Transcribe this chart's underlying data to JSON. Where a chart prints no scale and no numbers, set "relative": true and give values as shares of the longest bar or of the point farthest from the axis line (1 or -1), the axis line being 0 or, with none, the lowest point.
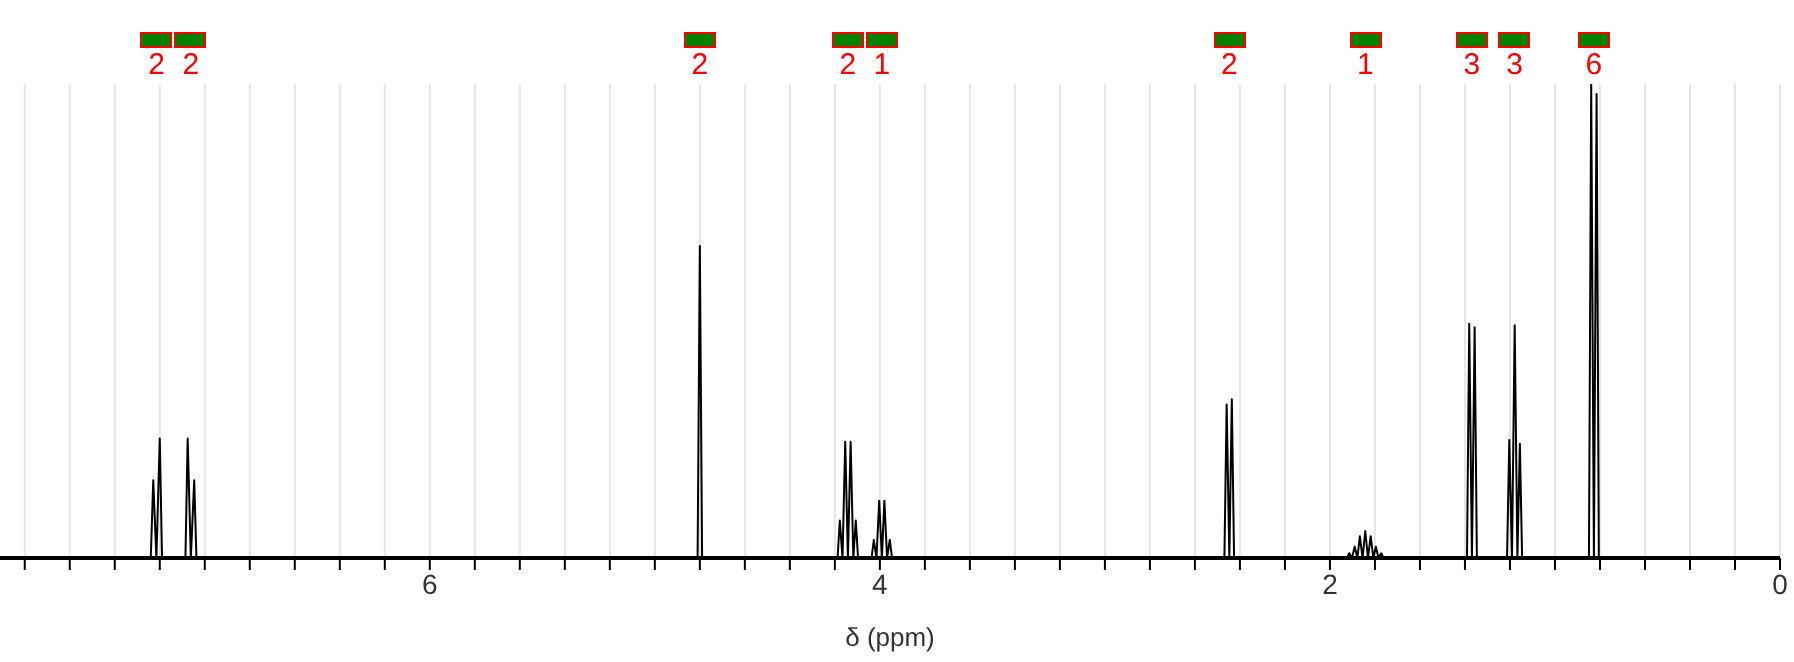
{
  "chart_data": {
    "type": "line",
    "xlabel": "δ (ppm)",
    "relative": true,
    "grid": "x",
    "marker": "none",
    "line_style": "solid",
    "xlim": [
      7.91,
      0
    ],
    "xticks": [
      {
        "value": 7.8,
        "label": null
      },
      {
        "value": 7.6,
        "label": null
      },
      {
        "value": 7.4,
        "label": null
      },
      {
        "value": 7.2,
        "label": null
      },
      {
        "value": 7,
        "label": null
      },
      {
        "value": 6.8,
        "label": null
      },
      {
        "value": 6.6,
        "label": null
      },
      {
        "value": 6.4,
        "label": null
      },
      {
        "value": 6.2,
        "label": null
      },
      6,
      {
        "value": 5.8,
        "label": null
      },
      {
        "value": 5.6,
        "label": null
      },
      {
        "value": 5.4,
        "label": null
      },
      {
        "value": 5.2,
        "label": null
      },
      {
        "value": 5,
        "label": null
      },
      {
        "value": 4.8,
        "label": null
      },
      {
        "value": 4.6,
        "label": null
      },
      {
        "value": 4.4,
        "label": null
      },
      {
        "value": 4.2,
        "label": null
      },
      4,
      {
        "value": 3.8,
        "label": null
      },
      {
        "value": 3.6,
        "label": null
      },
      {
        "value": 3.4,
        "label": null
      },
      {
        "value": 3.2,
        "label": null
      },
      {
        "value": 3,
        "label": null
      },
      {
        "value": 2.8,
        "label": null
      },
      {
        "value": 2.6,
        "label": null
      },
      {
        "value": 2.4,
        "label": null
      },
      {
        "value": 2.2,
        "label": null
      },
      2,
      {
        "value": 1.8,
        "label": null
      },
      {
        "value": 1.6,
        "label": null
      },
      {
        "value": 1.4,
        "label": null
      },
      {
        "value": 1.2,
        "label": null
      },
      {
        "value": 1,
        "label": null
      },
      {
        "value": 0.8,
        "label": null
      },
      {
        "value": 0.6,
        "label": null
      },
      {
        "value": 0.4,
        "label": null
      },
      {
        "value": 0.2,
        "label": null
      },
      0
    ],
    "annotations": [
      "2",
      "2",
      "2",
      "2",
      "1",
      "2",
      "1",
      "3",
      "3",
      "6"
    ],
    "series": [
      {
        "color": "#000000",
        "x": [
          7.91,
          7.24,
          7.229,
          7.215,
          7.2,
          7.19,
          7.086,
          7.076,
          7.062,
          7.047,
          7.037,
          4.81,
          4.8,
          4.79,
          4.188,
          4.178,
          4.166,
          4.154,
          4.142,
          4.13,
          4.118,
          4.107,
          4.097,
          4.037,
          4.027,
          4.015,
          4.003,
          3.991,
          3.98,
          3.968,
          3.956,
          3.946,
          2.469,
          2.459,
          2.447,
          2.436,
          2.426,
          1.924,
          1.914,
          1.902,
          1.89,
          1.878,
          1.867,
          1.855,
          1.843,
          1.831,
          1.819,
          1.807,
          1.796,
          1.784,
          1.772,
          1.762,
          1.391,
          1.381,
          1.369,
          1.357,
          1.347,
          1.213,
          1.203,
          1.191,
          1.179,
          1.167,
          1.156,
          1.146,
          0.849,
          0.839,
          0.827,
          0.815,
          0.805,
          0
        ],
        "values": [
          0,
          0,
          0.164,
          0,
          0.252,
          0,
          0,
          0.252,
          0,
          0.164,
          0,
          0,
          0.658,
          0,
          0,
          0.079,
          0,
          0.245,
          0,
          0.245,
          0,
          0.079,
          0,
          0,
          0.038,
          0,
          0.121,
          0,
          0.121,
          0,
          0.038,
          0,
          0,
          0.324,
          0,
          0.335,
          0,
          0,
          0.01,
          0,
          0.024,
          0,
          0.046,
          0,
          0.057,
          0,
          0.046,
          0,
          0.024,
          0,
          0.01,
          0,
          0,
          0.494,
          0,
          0.487,
          0,
          0,
          0.249,
          0,
          0.491,
          0,
          0.241,
          0,
          0,
          1,
          0,
          0.979,
          0,
          0
        ]
      }
    ]
  }
}
